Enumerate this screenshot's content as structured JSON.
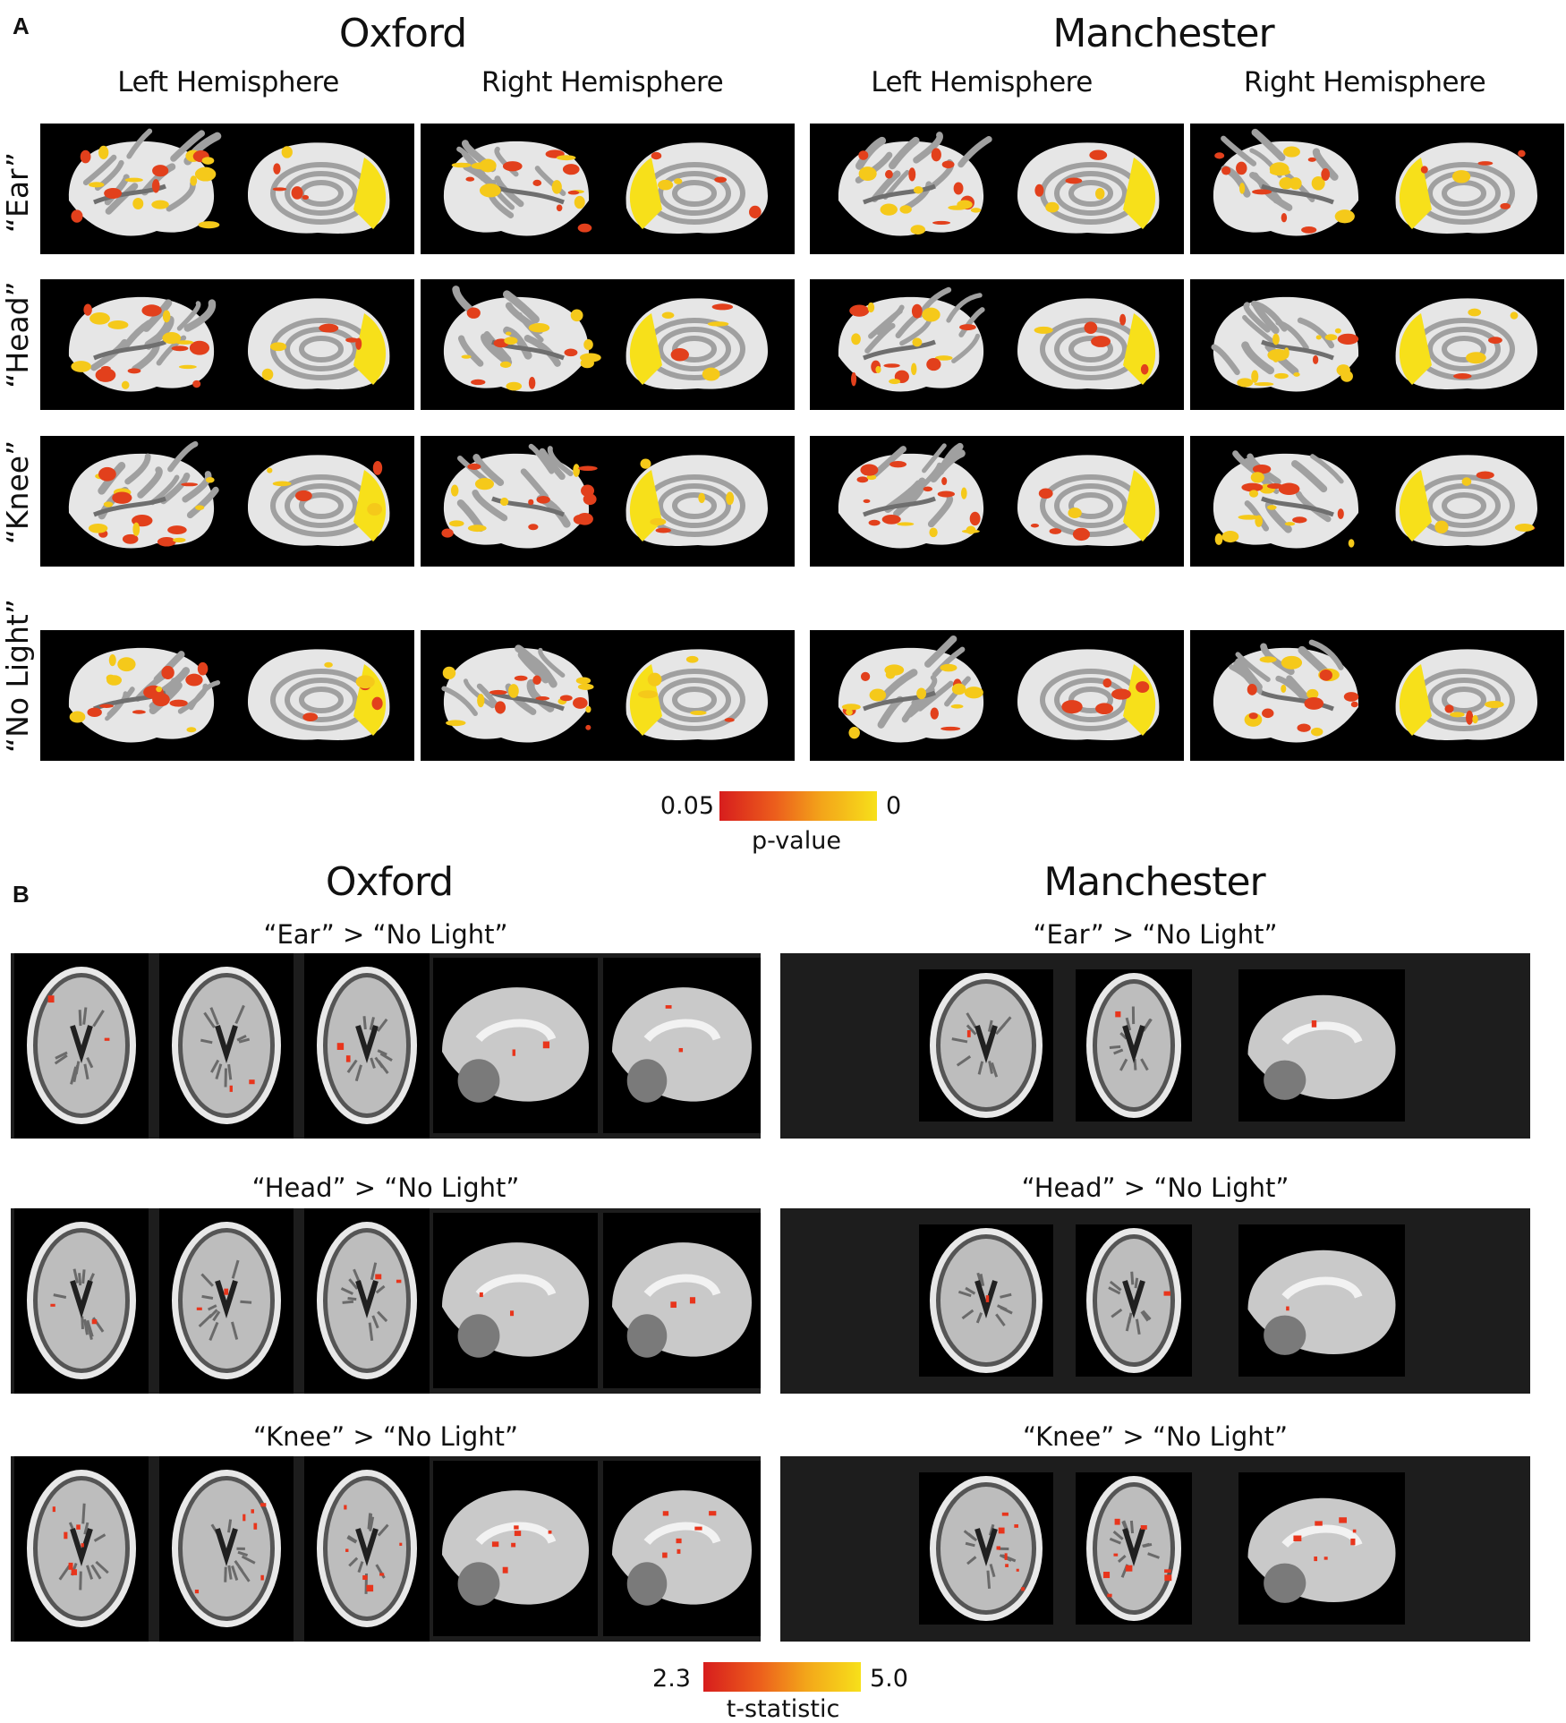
{
  "panel_a": {
    "letter": "A",
    "sites": [
      "Oxford",
      "Manchester"
    ],
    "hemispheres": [
      "Left Hemisphere",
      "Right Hemisphere",
      "Left Hemisphere",
      "Right Hemisphere"
    ],
    "rows": [
      "“Ear”",
      "“Head”",
      "“Knee”",
      "“No Light”"
    ],
    "colorbar": {
      "min_label": "0.05",
      "max_label": "0",
      "label": "p-value"
    }
  },
  "panel_b": {
    "letter": "B",
    "sites": [
      "Oxford",
      "Manchester"
    ],
    "contrasts": [
      "“Ear” > “No Light”",
      "“Head” > “No Light”",
      "“Knee” > “No Light”"
    ],
    "colorbar": {
      "min_label": "2.3",
      "max_label": "5.0",
      "label": "t-statistic"
    }
  },
  "colors": {
    "activation_low": "#d71d1d",
    "activation_high": "#f7e01a",
    "tile_background": "#000000",
    "strip_background": "#1d1d1d",
    "cortex_gyri": "#e6e6e6",
    "cortex_sulci": "#a0a0a0"
  }
}
